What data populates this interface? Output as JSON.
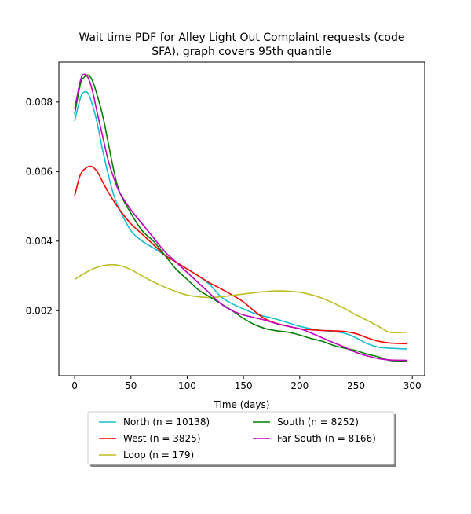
{
  "chart_data": {
    "type": "line",
    "title_line1": "Wait time PDF for Alley Light Out Complaint  requests (code",
    "title_line2": "SFA), graph covers 95th quantile",
    "xlabel": "Time (days)",
    "ylabel": "",
    "xlim": [
      -14,
      311
    ],
    "ylim": [
      0.00013,
      0.00915
    ],
    "xticks": [
      0,
      50,
      100,
      150,
      200,
      250,
      300
    ],
    "xtick_labels": [
      "0",
      "50",
      "100",
      "150",
      "200",
      "250",
      "300"
    ],
    "yticks": [
      0.002,
      0.004,
      0.006,
      0.008
    ],
    "ytick_labels": [
      "0.002",
      "0.004",
      "0.006",
      "0.008"
    ],
    "grid": false,
    "legend_position": "bottom-center, outside plot",
    "series": [
      {
        "name": "North (n = 10138)",
        "color": "#17becf",
        "x": [
          0,
          5,
          8,
          12,
          16,
          20,
          25,
          30,
          35,
          40,
          50,
          60,
          70,
          80,
          90,
          100,
          110,
          120,
          130,
          140,
          150,
          160,
          170,
          180,
          190,
          200,
          210,
          220,
          230,
          240,
          250,
          260,
          270,
          280,
          295
        ],
        "y": [
          0.00745,
          0.0081,
          0.00828,
          0.00825,
          0.0079,
          0.0074,
          0.0066,
          0.0059,
          0.0053,
          0.0049,
          0.0043,
          0.004,
          0.0038,
          0.0036,
          0.0034,
          0.0032,
          0.003,
          0.00275,
          0.0024,
          0.0022,
          0.00205,
          0.00192,
          0.00183,
          0.00175,
          0.00165,
          0.00155,
          0.00148,
          0.00143,
          0.0014,
          0.00135,
          0.00122,
          0.00105,
          0.00095,
          0.00092,
          0.0009
        ]
      },
      {
        "name": "West (n = 3825)",
        "color": "#ff0000",
        "x": [
          0,
          5,
          10,
          15,
          20,
          25,
          30,
          40,
          50,
          60,
          70,
          80,
          90,
          100,
          110,
          120,
          130,
          140,
          150,
          160,
          170,
          180,
          190,
          200,
          210,
          220,
          230,
          240,
          250,
          260,
          270,
          280,
          295
        ],
        "y": [
          0.0053,
          0.0059,
          0.0061,
          0.00615,
          0.006,
          0.0057,
          0.0054,
          0.0049,
          0.0045,
          0.0042,
          0.0039,
          0.0036,
          0.0034,
          0.0032,
          0.003,
          0.0028,
          0.00263,
          0.00245,
          0.00225,
          0.00198,
          0.00175,
          0.00163,
          0.00155,
          0.00148,
          0.00145,
          0.00143,
          0.00142,
          0.0014,
          0.00134,
          0.00122,
          0.00112,
          0.00107,
          0.00105
        ]
      },
      {
        "name": "Loop (n = 179)",
        "color": "#bcbd22",
        "x": [
          0,
          10,
          20,
          30,
          40,
          50,
          60,
          70,
          80,
          90,
          100,
          110,
          120,
          130,
          140,
          150,
          160,
          170,
          180,
          190,
          200,
          210,
          220,
          230,
          240,
          250,
          260,
          270,
          280,
          295
        ],
        "y": [
          0.0029,
          0.0031,
          0.00325,
          0.00332,
          0.0033,
          0.00318,
          0.003,
          0.00283,
          0.00268,
          0.00255,
          0.00245,
          0.0024,
          0.00238,
          0.0024,
          0.00244,
          0.00248,
          0.00252,
          0.00255,
          0.00257,
          0.00256,
          0.00253,
          0.00246,
          0.00236,
          0.00222,
          0.00206,
          0.00188,
          0.00172,
          0.00155,
          0.00138,
          0.00138
        ]
      },
      {
        "name": "South (n = 8252)",
        "color": "#008000",
        "x": [
          0,
          5,
          8,
          12,
          16,
          20,
          25,
          30,
          35,
          40,
          50,
          60,
          70,
          80,
          90,
          100,
          110,
          120,
          130,
          140,
          150,
          160,
          170,
          180,
          190,
          200,
          210,
          220,
          230,
          240,
          250,
          260,
          270,
          280,
          295
        ],
        "y": [
          0.00765,
          0.0085,
          0.0087,
          0.00878,
          0.0086,
          0.0082,
          0.0076,
          0.0068,
          0.006,
          0.0054,
          0.0048,
          0.0043,
          0.004,
          0.0036,
          0.0032,
          0.0029,
          0.0026,
          0.0024,
          0.0022,
          0.002,
          0.00178,
          0.0016,
          0.00148,
          0.00142,
          0.00138,
          0.0013,
          0.0012,
          0.00112,
          0.001,
          0.00092,
          0.00085,
          0.00075,
          0.00067,
          0.00057,
          0.00055
        ]
      },
      {
        "name": "Far South (n = 8166)",
        "color": "#bf00bf",
        "x": [
          0,
          5,
          8,
          12,
          16,
          20,
          25,
          30,
          35,
          40,
          50,
          60,
          70,
          80,
          90,
          100,
          110,
          120,
          130,
          140,
          150,
          160,
          170,
          180,
          190,
          200,
          210,
          220,
          230,
          240,
          250,
          260,
          270,
          280,
          295
        ],
        "y": [
          0.0078,
          0.0086,
          0.0088,
          0.0087,
          0.0083,
          0.0077,
          0.007,
          0.0063,
          0.0058,
          0.0054,
          0.0049,
          0.0045,
          0.0041,
          0.0037,
          0.0034,
          0.0031,
          0.0028,
          0.0025,
          0.0022,
          0.002,
          0.00188,
          0.0018,
          0.00172,
          0.00162,
          0.00155,
          0.00148,
          0.00136,
          0.00122,
          0.00108,
          0.00095,
          0.0008,
          0.0007,
          0.00062,
          0.00058,
          0.00057
        ]
      }
    ]
  }
}
